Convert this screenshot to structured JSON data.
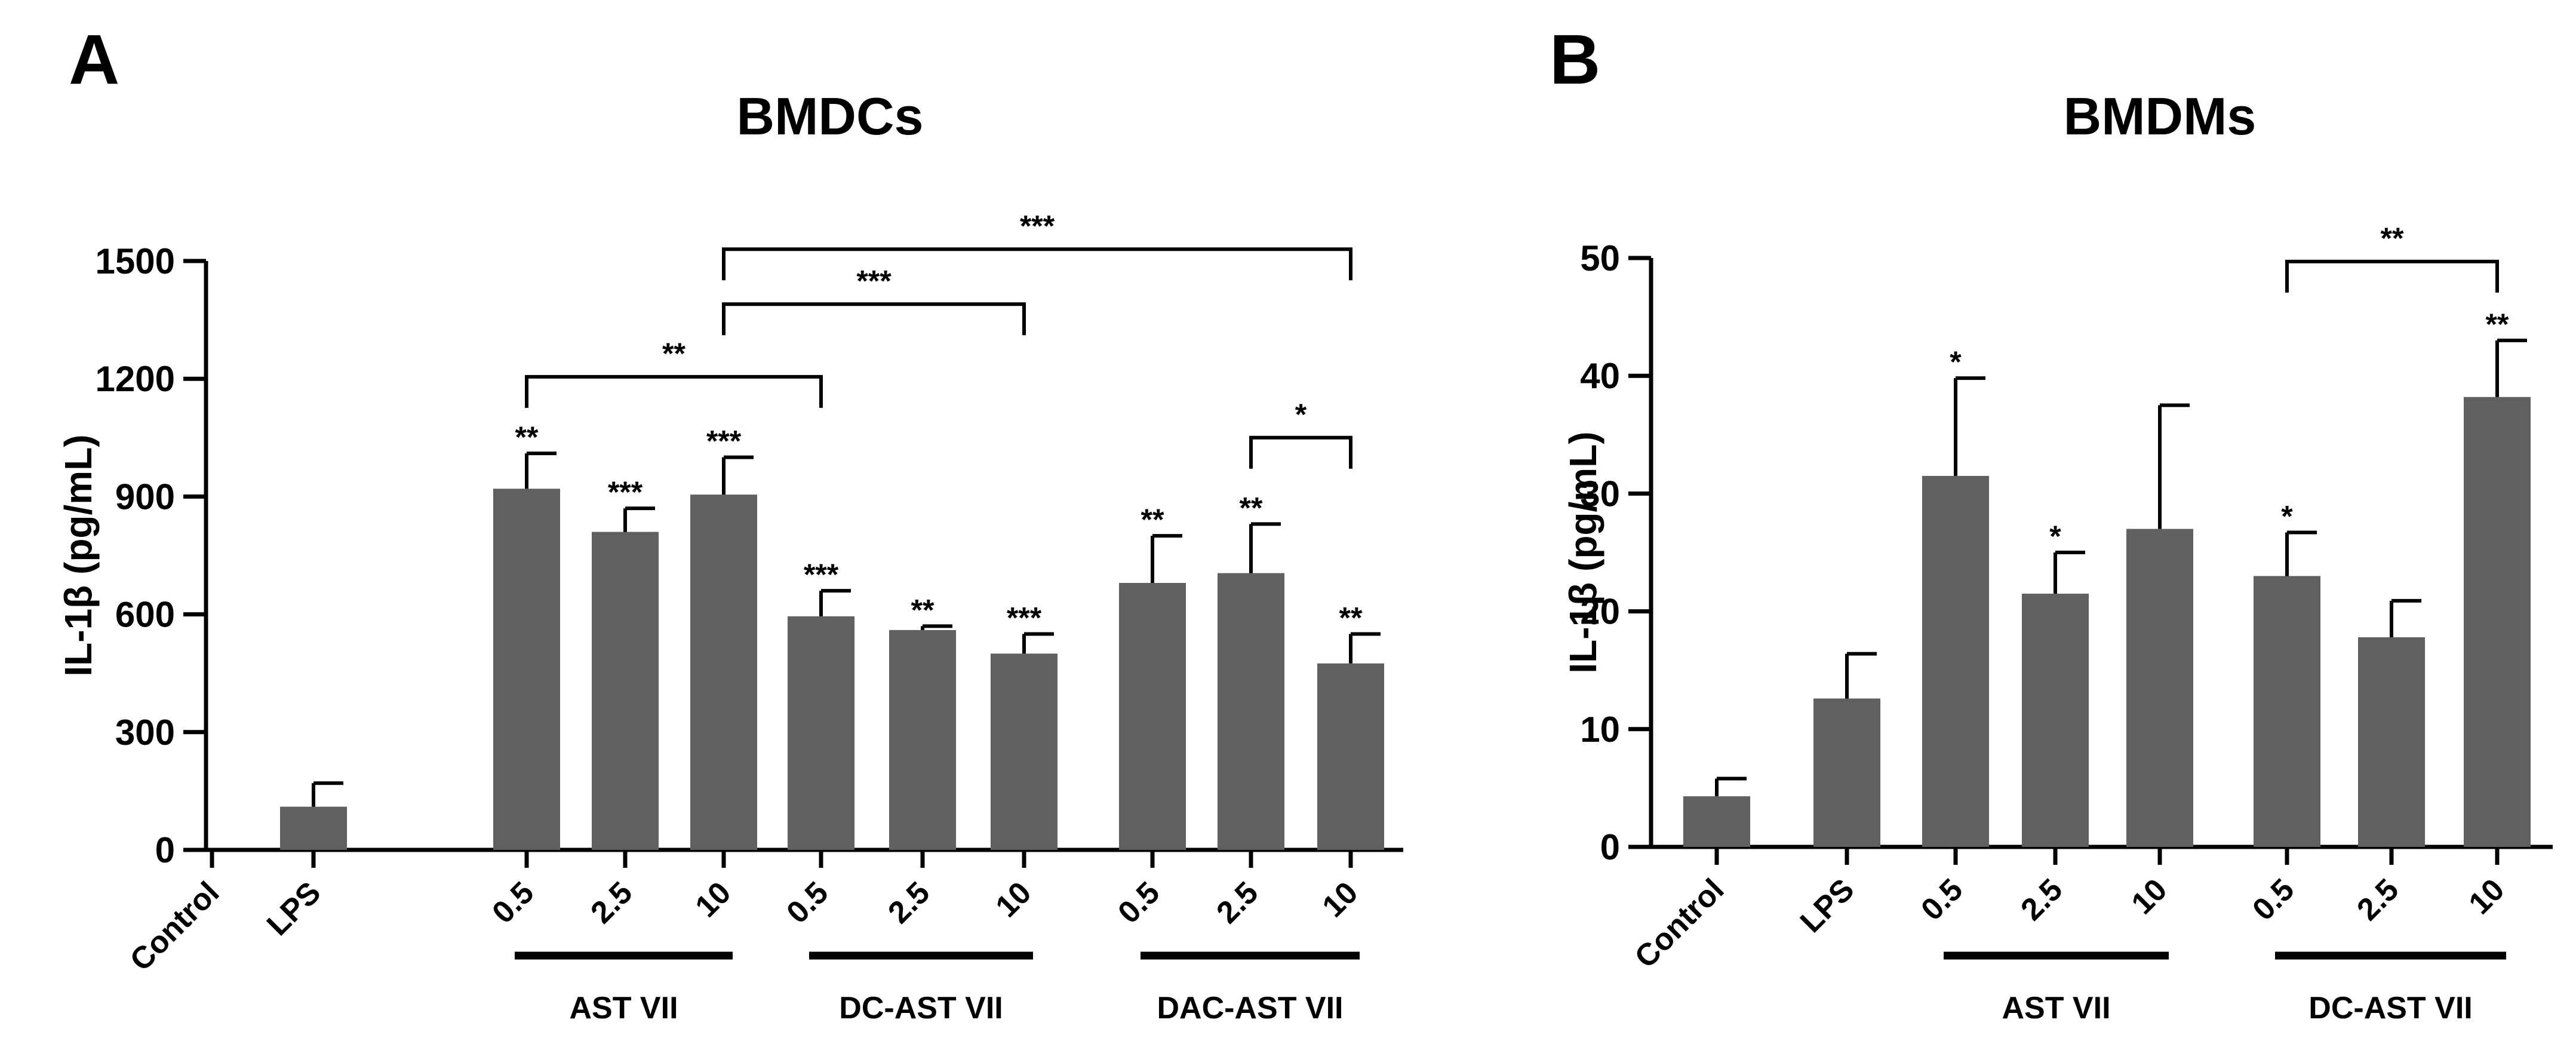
{
  "chart_data": [
    {
      "type": "bar",
      "panel": "A",
      "title": "BMDCs",
      "ylabel": "IL-1β (pg/mL)",
      "xlabel": "",
      "ylim": [
        0,
        1500
      ],
      "yticks": [
        0,
        300,
        600,
        900,
        1200,
        1500
      ],
      "categories": [
        "Control",
        "LPS",
        "0.5",
        "2.5",
        "10",
        "0.5",
        "2.5",
        "10",
        "0.5",
        "2.5",
        "10"
      ],
      "values": [
        0,
        110,
        920,
        810,
        905,
        595,
        560,
        500,
        680,
        705,
        475
      ],
      "errors": [
        0,
        60,
        90,
        60,
        95,
        65,
        10,
        50,
        120,
        125,
        75
      ],
      "labels": [
        "",
        "",
        "**",
        "***",
        "***",
        "***",
        "**",
        "***",
        "**",
        "**",
        "**"
      ],
      "groups": [
        {
          "label": "AST VII",
          "indices": [
            2,
            4
          ]
        },
        {
          "label": "DC-AST VII",
          "indices": [
            5,
            7
          ]
        },
        {
          "label": "DAC-AST VII",
          "indices": [
            8,
            10
          ]
        }
      ],
      "comparisons": [
        {
          "from": 2,
          "to": 5,
          "at": 1205,
          "label": "**"
        },
        {
          "from": 4,
          "to": 7,
          "at": 1390,
          "label": "***"
        },
        {
          "from": 4,
          "to": 10,
          "at": 1530,
          "label": "***"
        },
        {
          "from": 9,
          "to": 10,
          "at": 1050,
          "label": "*"
        }
      ]
    },
    {
      "type": "bar",
      "panel": "B",
      "title": "BMDMs",
      "ylabel": "IL-1β (pg/mL)",
      "xlabel": "",
      "ylim": [
        0,
        50
      ],
      "yticks": [
        0,
        10,
        20,
        30,
        40,
        50
      ],
      "categories": [
        "Control",
        "LPS",
        "0.5",
        "2.5",
        "10",
        "0.5",
        "2.5",
        "10"
      ],
      "values": [
        4.3,
        12.6,
        31.5,
        21.5,
        27.0,
        23.0,
        17.8,
        38.2
      ],
      "errors": [
        1.5,
        3.8,
        8.3,
        3.5,
        10.5,
        3.7,
        3.1,
        4.8
      ],
      "labels": [
        "",
        "",
        "*",
        "*",
        "",
        "*",
        "",
        "**"
      ],
      "groups": [
        {
          "label": "AST VII",
          "indices": [
            2,
            4
          ]
        },
        {
          "label": "DC-AST VII",
          "indices": [
            5,
            7
          ]
        }
      ],
      "comparisons": [
        {
          "from": 5,
          "to": 7,
          "at": 49.7,
          "label": "**"
        }
      ]
    }
  ],
  "colors": {
    "bar": "#606060",
    "ink": "#000000"
  }
}
